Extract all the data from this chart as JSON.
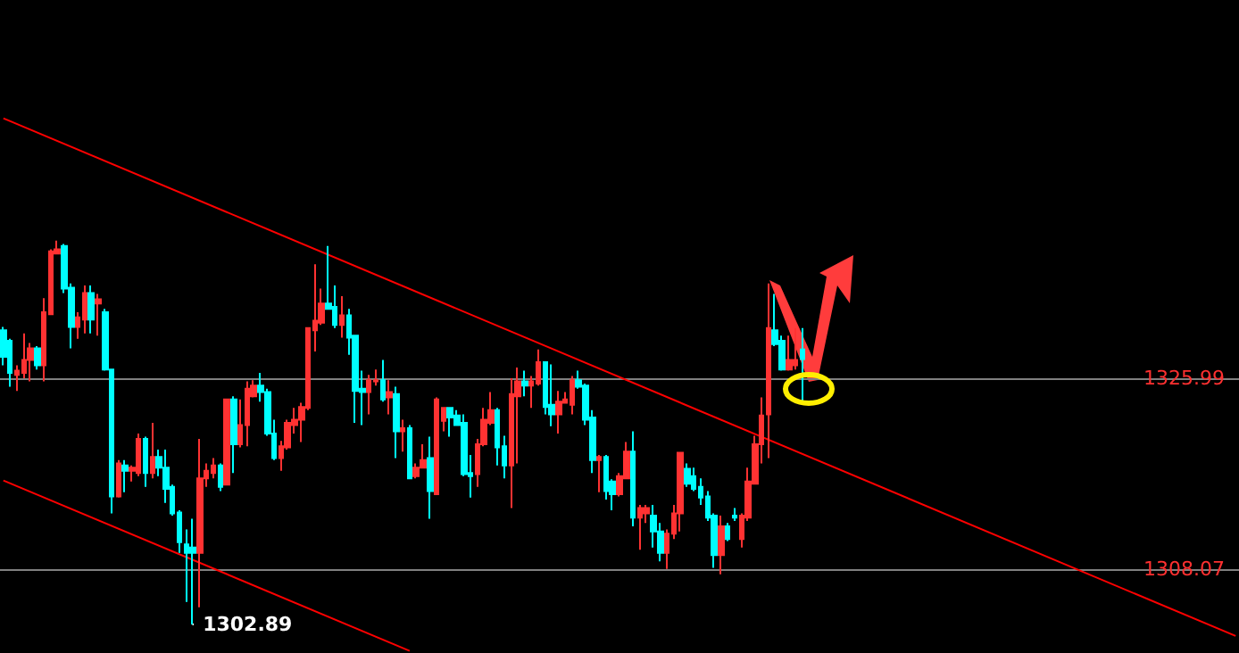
{
  "chart_data": {
    "type": "candlestick",
    "categories": [
      null,
      null,
      null,
      null,
      null,
      null,
      null,
      null,
      null,
      null,
      null,
      null,
      null,
      null,
      null,
      null,
      null,
      null,
      null,
      null,
      null,
      null,
      null,
      null,
      null,
      null,
      null,
      null,
      null,
      null,
      null,
      null,
      null,
      null,
      null,
      null,
      null,
      null,
      null,
      null,
      null,
      null,
      null,
      null,
      null,
      null,
      null,
      null,
      null,
      null,
      null,
      null,
      null,
      null,
      null,
      null,
      null,
      null,
      null,
      null,
      null,
      null,
      null,
      null,
      null,
      null,
      null,
      null,
      null,
      null,
      null,
      null,
      null,
      null,
      null,
      null,
      null,
      null,
      null,
      null,
      null,
      null,
      null,
      null,
      null,
      null,
      null,
      null,
      null,
      null,
      null,
      null,
      null,
      null,
      null,
      null,
      null,
      null,
      null,
      null,
      null,
      null,
      null,
      null,
      null,
      null,
      null,
      null,
      null,
      null,
      null,
      null,
      null,
      null,
      null,
      null,
      null,
      null,
      null,
      null,
      null,
      null,
      null,
      null,
      null,
      null,
      null,
      null,
      null,
      null,
      null,
      null,
      null,
      null,
      null,
      null,
      null,
      null,
      null,
      null,
      null,
      null,
      null,
      null,
      null,
      null,
      null,
      null,
      null,
      null,
      null,
      null,
      null,
      null,
      null,
      null,
      null,
      null,
      null,
      null,
      null,
      null,
      null,
      null,
      null,
      null,
      null,
      null,
      null,
      null,
      null,
      null,
      null,
      null,
      null,
      null,
      null,
      null,
      null,
      null,
      null,
      null,
      null
    ],
    "ohlc": [
      [
        1330.5,
        1330.8,
        1327.2,
        1328.0
      ],
      [
        1329.5,
        1329.7,
        1325.2,
        1326.5
      ],
      [
        1326.3,
        1327.2,
        1324.8,
        1326.7
      ],
      [
        1326.5,
        1330.2,
        1326.0,
        1327.7
      ],
      [
        1327.7,
        1329.3,
        1325.7,
        1328.8
      ],
      [
        1328.8,
        1329.0,
        1326.8,
        1327.2
      ],
      [
        1327.2,
        1333.5,
        1325.7,
        1332.2
      ],
      [
        1332.0,
        1338.1,
        1332.0,
        1337.9
      ],
      [
        1337.7,
        1338.9,
        1337.7,
        1338.1
      ],
      [
        1338.4,
        1338.6,
        1334.0,
        1334.4
      ],
      [
        1334.5,
        1334.9,
        1328.8,
        1330.8
      ],
      [
        1330.8,
        1332.2,
        1329.7,
        1331.7
      ],
      [
        1331.5,
        1334.7,
        1330.2,
        1334.0
      ],
      [
        1334.0,
        1334.7,
        1330.2,
        1331.5
      ],
      [
        1333.0,
        1333.9,
        1330.0,
        1333.4
      ],
      [
        1332.2,
        1332.5,
        1326.7,
        1326.8
      ],
      [
        1326.8,
        1326.8,
        1313.3,
        1314.9
      ],
      [
        1314.9,
        1318.3,
        1314.8,
        1318.0
      ],
      [
        1317.8,
        1318.3,
        1315.3,
        1317.3
      ],
      [
        1317.3,
        1317.8,
        1316.3,
        1317.6
      ],
      [
        1317.1,
        1320.8,
        1316.8,
        1320.3
      ],
      [
        1320.3,
        1320.5,
        1315.8,
        1317.1
      ],
      [
        1317.1,
        1321.8,
        1316.6,
        1318.6
      ],
      [
        1318.6,
        1319.3,
        1316.8,
        1317.6
      ],
      [
        1317.6,
        1319.3,
        1314.3,
        1315.6
      ],
      [
        1315.8,
        1316.0,
        1313.1,
        1313.3
      ],
      [
        1313.4,
        1313.6,
        1309.6,
        1310.6
      ],
      [
        1310.4,
        1311.8,
        1305.0,
        1309.6
      ],
      [
        1310.1,
        1312.8,
        1302.89,
        1309.6
      ],
      [
        1309.6,
        1320.3,
        1304.5,
        1316.6
      ],
      [
        1316.6,
        1318.0,
        1315.8,
        1317.3
      ],
      [
        1317.1,
        1318.5,
        1316.6,
        1317.8
      ],
      [
        1317.8,
        1318.0,
        1315.4,
        1315.8
      ],
      [
        1316.0,
        1324.0,
        1316.0,
        1324.0
      ],
      [
        1324.0,
        1324.3,
        1317.1,
        1319.8
      ],
      [
        1319.8,
        1324.0,
        1319.5,
        1321.6
      ],
      [
        1321.6,
        1325.7,
        1319.6,
        1325.0
      ],
      [
        1324.3,
        1325.8,
        1324.2,
        1325.3
      ],
      [
        1325.3,
        1326.5,
        1323.8,
        1324.7
      ],
      [
        1324.7,
        1325.0,
        1320.6,
        1320.8
      ],
      [
        1320.8,
        1322.1,
        1318.3,
        1318.5
      ],
      [
        1318.5,
        1320.1,
        1317.3,
        1319.6
      ],
      [
        1319.5,
        1322.1,
        1319.3,
        1321.8
      ],
      [
        1321.6,
        1323.2,
        1320.8,
        1322.1
      ],
      [
        1322.1,
        1323.7,
        1320.0,
        1323.3
      ],
      [
        1323.2,
        1330.7,
        1323.0,
        1330.7
      ],
      [
        1330.5,
        1336.7,
        1328.5,
        1331.4
      ],
      [
        1331.2,
        1334.4,
        1331.0,
        1333.0
      ],
      [
        1333.0,
        1338.4,
        1332.5,
        1332.5
      ],
      [
        1332.7,
        1334.7,
        1330.7,
        1331.0
      ],
      [
        1331.0,
        1333.7,
        1329.8,
        1331.9
      ],
      [
        1331.9,
        1332.5,
        1328.2,
        1329.8
      ],
      [
        1330.0,
        1330.0,
        1321.8,
        1324.8
      ],
      [
        1325.0,
        1326.7,
        1321.6,
        1324.7
      ],
      [
        1324.7,
        1326.3,
        1322.6,
        1325.8
      ],
      [
        1325.7,
        1326.8,
        1325.3,
        1325.8
      ],
      [
        1325.8,
        1327.7,
        1323.8,
        1324.0
      ],
      [
        1324.2,
        1325.8,
        1322.6,
        1324.7
      ],
      [
        1324.5,
        1325.2,
        1318.5,
        1321.0
      ],
      [
        1321.0,
        1322.1,
        1319.1,
        1321.3
      ],
      [
        1321.3,
        1321.6,
        1316.5,
        1316.6
      ],
      [
        1316.8,
        1318.0,
        1316.6,
        1317.6
      ],
      [
        1317.6,
        1319.8,
        1317.6,
        1318.3
      ],
      [
        1318.5,
        1320.5,
        1312.8,
        1315.4
      ],
      [
        1315.1,
        1324.2,
        1315.1,
        1324.0
      ],
      [
        1322.0,
        1323.3,
        1321.0,
        1323.2
      ],
      [
        1323.2,
        1323.3,
        1320.5,
        1322.3
      ],
      [
        1322.5,
        1323.0,
        1321.6,
        1321.6
      ],
      [
        1321.8,
        1322.6,
        1316.8,
        1317.0
      ],
      [
        1317.1,
        1318.8,
        1314.8,
        1316.8
      ],
      [
        1317.0,
        1320.3,
        1315.8,
        1319.8
      ],
      [
        1319.8,
        1323.2,
        1319.6,
        1322.1
      ],
      [
        1321.8,
        1324.7,
        1321.6,
        1323.0
      ],
      [
        1323.0,
        1323.2,
        1317.8,
        1319.5
      ],
      [
        1319.6,
        1320.6,
        1316.6,
        1317.8
      ],
      [
        1317.8,
        1326.0,
        1313.8,
        1324.5
      ],
      [
        1324.3,
        1327.0,
        1318.0,
        1325.7
      ],
      [
        1325.7,
        1326.7,
        1324.3,
        1325.3
      ],
      [
        1325.3,
        1326.2,
        1323.2,
        1325.7
      ],
      [
        1325.5,
        1328.7,
        1325.3,
        1327.5
      ],
      [
        1327.5,
        1327.5,
        1322.6,
        1323.3
      ],
      [
        1323.5,
        1327.3,
        1321.5,
        1322.6
      ],
      [
        1322.6,
        1324.8,
        1320.8,
        1323.8
      ],
      [
        1323.7,
        1324.7,
        1323.7,
        1324.0
      ],
      [
        1323.5,
        1326.2,
        1322.6,
        1325.8
      ],
      [
        1325.8,
        1326.7,
        1325.0,
        1325.2
      ],
      [
        1325.3,
        1325.5,
        1321.6,
        1322.1
      ],
      [
        1322.3,
        1323.0,
        1317.1,
        1318.3
      ],
      [
        1318.3,
        1318.8,
        1315.3,
        1318.6
      ],
      [
        1318.6,
        1318.8,
        1314.6,
        1315.4
      ],
      [
        1316.3,
        1316.5,
        1313.6,
        1315.1
      ],
      [
        1315.1,
        1317.1,
        1314.9,
        1316.8
      ],
      [
        1316.6,
        1320.0,
        1316.5,
        1319.1
      ],
      [
        1319.1,
        1321.0,
        1312.1,
        1312.9
      ],
      [
        1312.9,
        1314.1,
        1309.9,
        1313.8
      ],
      [
        1313.3,
        1314.1,
        1312.4,
        1313.8
      ],
      [
        1313.1,
        1314.1,
        1310.1,
        1311.6
      ],
      [
        1311.6,
        1312.4,
        1308.8,
        1309.6
      ],
      [
        1309.6,
        1311.8,
        1308.1,
        1311.4
      ],
      [
        1311.4,
        1314.1,
        1310.9,
        1313.3
      ],
      [
        1313.3,
        1319.0,
        1311.6,
        1319.0
      ],
      [
        1317.5,
        1318.0,
        1315.8,
        1316.1
      ],
      [
        1316.8,
        1317.6,
        1315.4,
        1315.6
      ],
      [
        1315.8,
        1316.6,
        1314.1,
        1314.8
      ],
      [
        1314.9,
        1315.4,
        1312.6,
        1312.9
      ],
      [
        1313.1,
        1313.3,
        1308.2,
        1309.4
      ],
      [
        1309.4,
        1313.1,
        1307.6,
        1312.1
      ],
      [
        1312.1,
        1312.4,
        1310.7,
        1310.9
      ],
      [
        1313.1,
        1313.8,
        1312.6,
        1312.9
      ],
      [
        1310.9,
        1313.3,
        1310.1,
        1313.1
      ],
      [
        1312.9,
        1317.6,
        1312.6,
        1316.3
      ],
      [
        1316.1,
        1320.6,
        1316.0,
        1319.8
      ],
      [
        1319.8,
        1324.2,
        1318.0,
        1322.5
      ],
      [
        1322.6,
        1334.9,
        1318.5,
        1330.7
      ],
      [
        1330.5,
        1333.9,
        1329.0,
        1329.2
      ],
      [
        1329.5,
        1330.0,
        1326.7,
        1326.8
      ],
      [
        1326.8,
        1330.0,
        1326.7,
        1327.7
      ],
      [
        1327.2,
        1330.7,
        1326.8,
        1327.7
      ],
      [
        1328.7,
        1330.7,
        1323.8,
        1327.8
      ],
      null,
      null,
      null,
      null,
      null,
      null,
      null,
      null,
      null,
      null,
      null,
      null,
      null,
      null,
      null,
      null,
      null,
      null,
      null,
      null,
      null,
      null,
      null,
      null,
      null,
      null,
      null,
      null,
      null,
      null,
      null,
      null,
      null,
      null,
      null,
      null,
      null,
      null,
      null,
      null,
      null,
      null,
      null,
      null,
      null,
      null,
      null,
      null,
      null,
      null,
      null,
      null,
      null,
      null,
      null,
      null,
      null,
      null,
      null,
      null,
      null,
      null,
      null,
      null
    ],
    "colors": [
      "#00ffff",
      "#00ffff",
      "#ff3232",
      "#ff3232",
      "#ff3232",
      "#00ffff",
      "#ff3232",
      "#ff3232",
      "#ff3232",
      "#00ffff",
      "#00ffff",
      "#ff3232",
      "#ff3232",
      "#00ffff",
      "#ff3232",
      "#00ffff",
      "#00ffff",
      "#ff3232",
      "#00ffff",
      "#ff3232",
      "#ff3232",
      "#00ffff",
      "#ff3232",
      "#00ffff",
      "#00ffff",
      "#00ffff",
      "#00ffff",
      "#00ffff",
      "#00ffff",
      "#ff3232",
      "#ff3232",
      "#ff3232",
      "#00ffff",
      "#ff3232",
      "#00ffff",
      "#ff3232",
      "#ff3232",
      "#ff3232",
      "#00ffff",
      "#00ffff",
      "#00ffff",
      "#ff3232",
      "#ff3232",
      "#ff3232",
      "#ff3232",
      "#ff3232",
      "#ff3232",
      "#ff3232",
      "#00ffff",
      "#00ffff",
      "#ff3232",
      "#00ffff",
      "#00ffff",
      "#00ffff",
      "#ff3232",
      "#ff3232",
      "#00ffff",
      "#ff3232",
      "#00ffff",
      "#ff3232",
      "#00ffff",
      "#ff3232",
      "#ff3232",
      "#00ffff",
      "#ff3232",
      "#ff3232",
      "#00ffff",
      "#00ffff",
      "#00ffff",
      "#00ffff",
      "#ff3232",
      "#ff3232",
      "#ff3232",
      "#00ffff",
      "#00ffff",
      "#ff3232",
      "#ff3232",
      "#00ffff",
      "#ff3232",
      "#ff3232",
      "#00ffff",
      "#00ffff",
      "#ff3232",
      "#ff3232",
      "#ff3232",
      "#00ffff",
      "#00ffff",
      "#00ffff",
      "#ff3232",
      "#00ffff",
      "#00ffff",
      "#ff3232",
      "#ff3232",
      "#00ffff",
      "#ff3232",
      "#ff3232",
      "#00ffff",
      "#00ffff",
      "#ff3232",
      "#ff3232",
      "#ff3232",
      "#00ffff",
      "#00ffff",
      "#00ffff",
      "#00ffff",
      "#00ffff",
      "#ff3232",
      "#00ffff",
      "#00ffff",
      "#ff3232",
      "#ff3232",
      "#ff3232",
      "#ff3232",
      "#ff3232",
      "#00ffff",
      "#00ffff",
      "#ff3232",
      "#ff3232",
      "#00ffff",
      null,
      null,
      null,
      null,
      null,
      null,
      null,
      null,
      null,
      null,
      null,
      null,
      null,
      null,
      null,
      null,
      null,
      null,
      null,
      null,
      null,
      null,
      null,
      null,
      null,
      null,
      null,
      null,
      null,
      null,
      null,
      null,
      null,
      null,
      null,
      null,
      null,
      null,
      null,
      null,
      null,
      null,
      null,
      null,
      null,
      null,
      null,
      null,
      null,
      null,
      null,
      null,
      null,
      null,
      null,
      null,
      null,
      null,
      null,
      null,
      null,
      null,
      null,
      null
    ],
    "series": [
      {
        "type": "line",
        "color": "#ff0000",
        "values": [
          1350.4,
          null,
          null,
          null,
          null,
          null,
          null,
          null,
          null,
          null,
          null,
          null,
          null,
          null,
          null,
          null,
          null,
          null,
          null,
          null,
          null,
          null,
          null,
          null,
          null,
          null,
          null,
          null,
          null,
          null,
          null,
          null,
          null,
          null,
          null,
          null,
          null,
          null,
          null,
          null,
          null,
          null,
          null,
          null,
          null,
          null,
          null,
          null,
          null,
          null,
          null,
          null,
          null,
          null,
          null,
          null,
          null,
          null,
          null,
          null,
          null,
          null,
          null,
          null,
          null,
          null,
          null,
          null,
          null,
          null,
          null,
          null,
          null,
          null,
          null,
          null,
          null,
          null,
          null,
          null,
          null,
          null,
          null,
          null,
          null,
          null,
          null,
          null,
          null,
          null,
          null,
          null,
          null,
          null,
          null,
          null,
          null,
          null,
          null,
          null,
          null,
          null,
          null,
          null,
          null,
          null,
          null,
          null,
          null,
          null,
          null,
          null,
          null,
          null,
          null,
          null,
          null,
          null,
          null,
          null,
          null,
          null,
          null,
          null,
          null,
          null,
          null,
          null,
          null,
          null,
          null,
          null,
          null,
          null,
          null,
          null,
          null,
          null,
          null,
          null,
          null,
          null,
          null,
          null,
          null,
          null,
          null,
          null,
          null,
          null,
          null,
          null,
          null,
          null,
          null,
          null,
          null,
          null,
          null,
          null,
          null,
          null,
          null,
          null,
          null,
          null,
          null,
          null,
          null,
          null,
          null,
          null,
          null,
          null,
          null,
          null,
          null,
          null,
          null,
          null,
          null,
          null,
          1301.8
        ]
      },
      {
        "type": "line",
        "color": "#ff0000",
        "values": [
          1316.4,
          null,
          null,
          null,
          null,
          null,
          null,
          null,
          null,
          null,
          null,
          null,
          null,
          null,
          null,
          null,
          null,
          null,
          null,
          null,
          null,
          null,
          null,
          null,
          null,
          null,
          null,
          null,
          null,
          null,
          null,
          null,
          null,
          null,
          null,
          null,
          null,
          null,
          null,
          null,
          null,
          null,
          null,
          null,
          null,
          null,
          null,
          null,
          null,
          null,
          null,
          null,
          null,
          null,
          null,
          null,
          null,
          null,
          null,
          null,
          1300.4,
          null,
          null,
          null,
          null,
          null,
          null,
          null,
          null,
          null,
          null,
          null,
          null,
          null,
          null,
          null,
          null,
          null,
          null,
          null,
          null,
          null,
          null,
          null,
          null,
          null,
          null,
          null,
          null,
          null,
          null,
          null,
          null,
          null,
          null,
          null,
          null,
          null,
          null,
          null,
          null,
          null,
          null,
          null,
          null,
          null,
          null,
          null,
          null,
          null,
          null,
          null,
          null,
          null,
          null,
          null,
          null,
          null,
          null,
          null,
          null,
          null,
          null,
          null,
          null,
          null,
          null,
          null,
          null,
          null,
          null,
          null,
          null,
          null,
          null,
          null,
          null,
          null,
          null,
          null,
          null,
          null,
          null,
          null,
          null,
          null,
          null,
          null,
          null,
          null,
          null,
          null,
          null,
          null,
          null,
          null,
          null,
          null,
          null,
          null,
          null,
          null,
          null,
          null,
          null,
          null,
          null,
          null,
          null,
          null,
          null,
          null,
          null,
          null,
          null,
          null,
          null,
          null,
          null,
          null,
          null,
          null,
          null
        ]
      }
    ],
    "ylim": [
      1300.2,
      1361.5
    ],
    "tick_labels": "y",
    "yticks": [
      1308.07,
      1325.99
    ],
    "grid": "y",
    "annotations": [
      "1302.89"
    ]
  }
}
